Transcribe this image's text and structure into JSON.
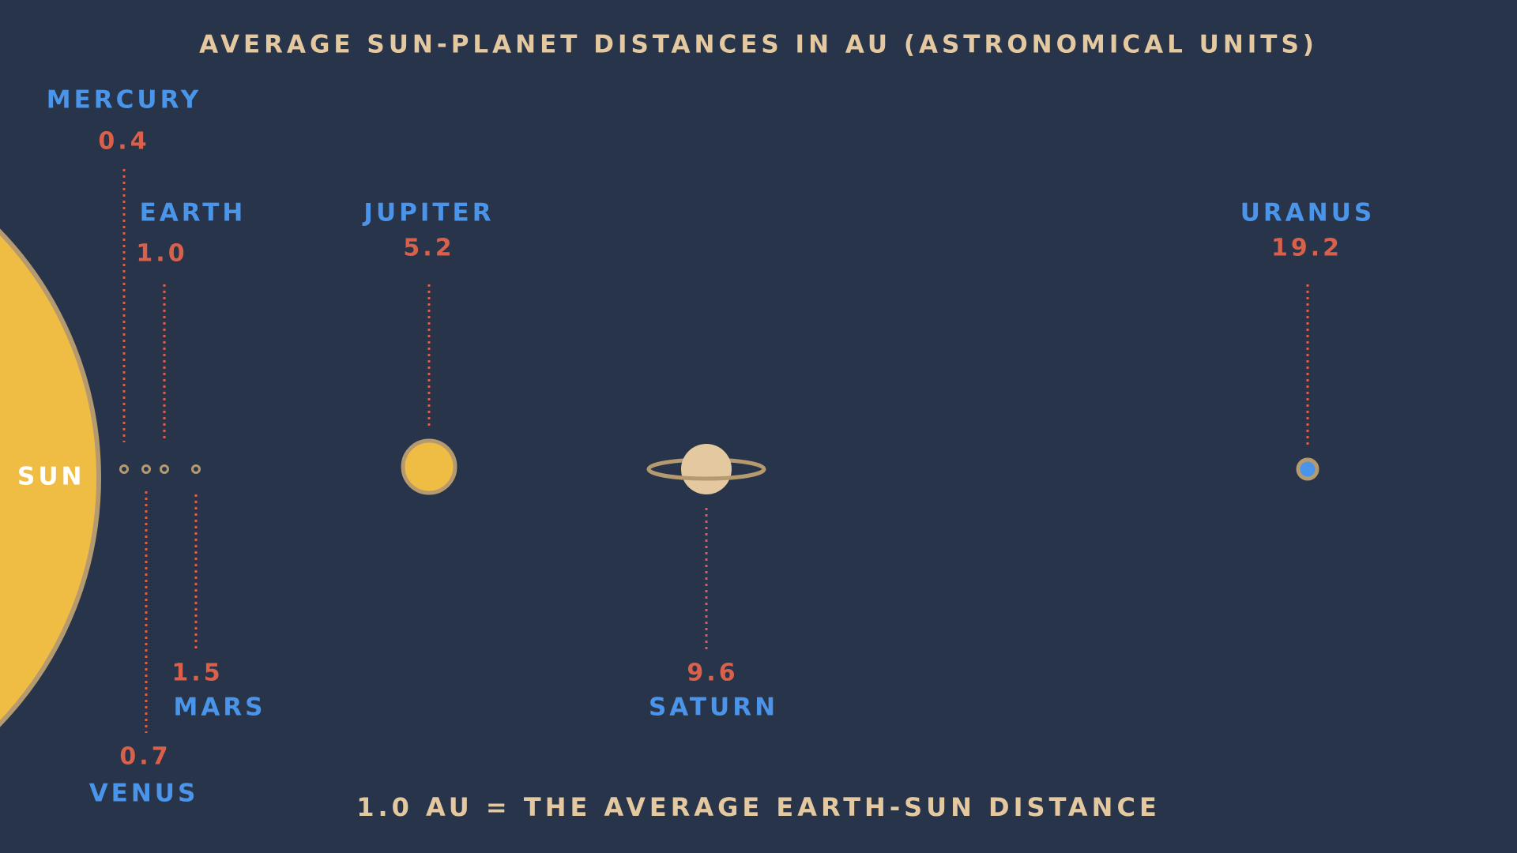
{
  "chart_data": {
    "type": "scatter",
    "title": "AVERAGE SUN-PLANET DISTANCES IN AU (ASTRONOMICAL UNITS)",
    "footnote": "1.0 AU = THE AVERAGE EARTH-SUN DISTANCE",
    "sun_label": "SUN",
    "unit": "AU",
    "planets": [
      {
        "name": "MERCURY",
        "value": 0.4,
        "label": "0.4",
        "label_side": "top"
      },
      {
        "name": "VENUS",
        "value": 0.7,
        "label": "0.7",
        "label_side": "bottom"
      },
      {
        "name": "EARTH",
        "value": 1.0,
        "label": "1.0",
        "label_side": "top"
      },
      {
        "name": "MARS",
        "value": 1.5,
        "label": "1.5",
        "label_side": "bottom"
      },
      {
        "name": "JUPITER",
        "value": 5.2,
        "label": "5.2",
        "label_side": "top"
      },
      {
        "name": "SATURN",
        "value": 9.6,
        "label": "9.6",
        "label_side": "bottom"
      },
      {
        "name": "URANUS",
        "value": 19.2,
        "label": "19.2",
        "label_side": "top"
      }
    ]
  },
  "colors": {
    "background": "#283449",
    "sun": "#f0bd44",
    "sun_outline": "#b59a70",
    "planet_name": "#4a94ea",
    "value_label": "#d9604a",
    "leader_line": "#d9604a",
    "title_text": "#e4c9a0"
  }
}
